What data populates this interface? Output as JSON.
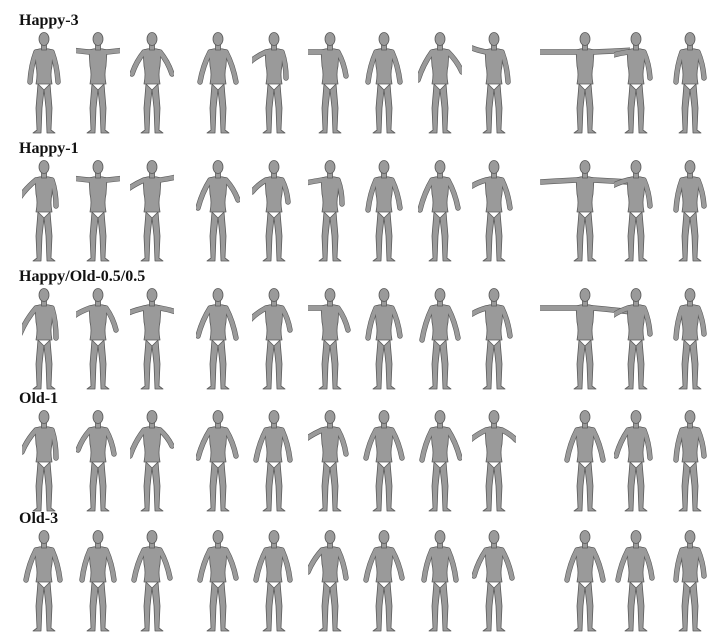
{
  "rows": [
    {
      "label": "Happy-3"
    },
    {
      "label": "Happy-1"
    },
    {
      "label": "Happy/Old-0.5/0.5"
    },
    {
      "label": "Old-1"
    },
    {
      "label": "Old-3"
    }
  ],
  "figure_shade": "#9a9a9a",
  "figure_outline": "#5a5a5a"
}
